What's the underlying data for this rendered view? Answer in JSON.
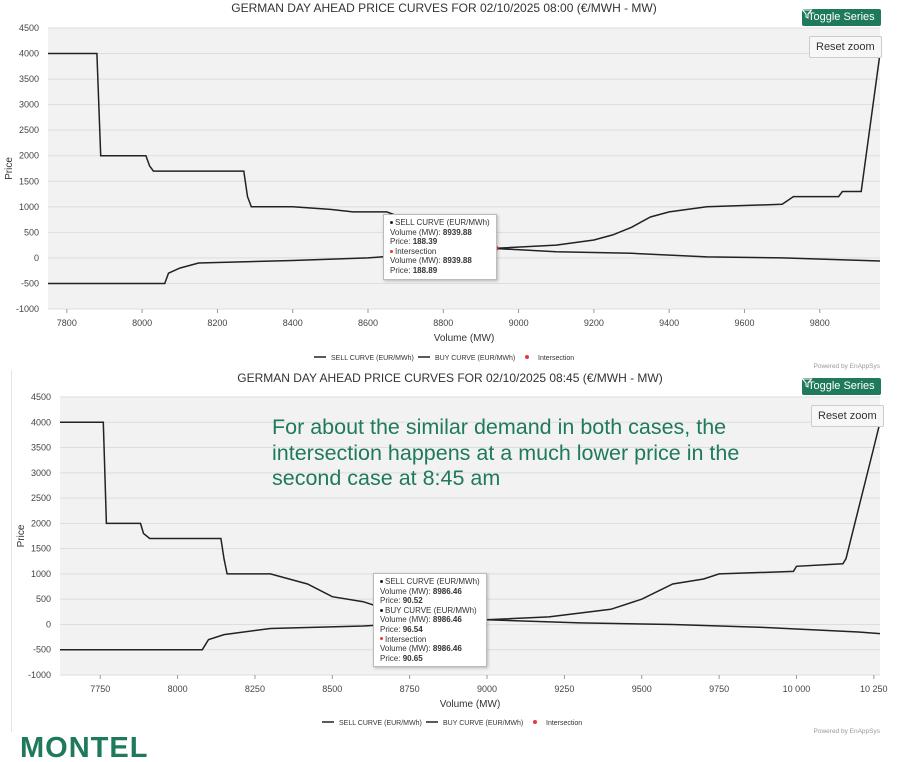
{
  "annotation": "For about the similar demand in both cases, the intersection happens at a  much lower price in the second case at 8:45 am",
  "logo_text": "MONTEL",
  "colors": {
    "brand": "#1f7a5c",
    "curve": "#222222",
    "intersection": "#e8383d",
    "plot_bg": "#f2f2f2",
    "grid": "#dddddd"
  },
  "charts": [
    {
      "toggle_label": "Toggle Series",
      "reset_label": "Reset zoom",
      "credits": "Powered by EnAppSys",
      "tooltip": [
        {
          "series": "SELL CURVE (EUR/MWh)",
          "volume_label": "Volume (MW):",
          "volume": "8939.88",
          "price_label": "Price:",
          "price": "188.39"
        },
        {
          "series": "Intersection",
          "volume_label": "Volume (MW):",
          "volume": "8939.88",
          "price_label": "Price:",
          "price": "188.89"
        }
      ]
    },
    {
      "toggle_label": "Toggle Series",
      "reset_label": "Reset zoom",
      "credits": "Powered by EnAppSys",
      "tooltip": [
        {
          "series": "SELL CURVE (EUR/MWh)",
          "volume_label": "Volume (MW):",
          "volume": "8986.46",
          "price_label": "Price:",
          "price": "90.52"
        },
        {
          "series": "BUY CURVE (EUR/MWh)",
          "volume_label": "Volume (MW):",
          "volume": "8986.46",
          "price_label": "Price:",
          "price": "96.54"
        },
        {
          "series": "Intersection",
          "volume_label": "Volume (MW):",
          "volume": "8986.46",
          "price_label": "Price:",
          "price": "90.65"
        }
      ]
    }
  ],
  "chart_data": [
    {
      "type": "line",
      "title": "GERMAN DAY AHEAD PRICE CURVES FOR 02/10/2025 08:00 (€/MWH - MW)",
      "xlabel": "Volume (MW)",
      "ylabel": "Price",
      "xlim": [
        7750,
        9960
      ],
      "ylim": [
        -1000,
        4500
      ],
      "x_ticks": [
        7800,
        8000,
        8200,
        8400,
        8600,
        8800,
        9000,
        9200,
        9400,
        9600,
        9800
      ],
      "x_tick_labels": [
        "7800",
        "8000",
        "8200",
        "8400",
        "8600",
        "8800",
        "9000",
        "9200",
        "9400",
        "9600",
        "9800"
      ],
      "y_ticks": [
        -1000,
        -500,
        0,
        500,
        1000,
        1500,
        2000,
        2500,
        3000,
        3500,
        4000,
        4500
      ],
      "y_tick_labels": [
        "-1000",
        "-500",
        "0",
        "500",
        "1000",
        "1500",
        "2000",
        "2500",
        "3000",
        "3500",
        "4000",
        "4500"
      ],
      "grid": "horizontal",
      "legend_position": "bottom",
      "series": [
        {
          "name": "BUY CURVE (EUR/MWh)",
          "x": [
            7750,
            7880,
            7890,
            8010,
            8020,
            8030,
            8270,
            8280,
            8290,
            8400,
            8500,
            8560,
            8650,
            8900,
            9100,
            9300,
            9500,
            9700,
            9960
          ],
          "y": [
            4000,
            4000,
            2000,
            2000,
            1800,
            1700,
            1700,
            1200,
            1000,
            1000,
            950,
            900,
            900,
            200,
            120,
            90,
            20,
            0,
            -60
          ]
        },
        {
          "name": "SELL CURVE (EUR/MWh)",
          "x": [
            7750,
            8060,
            8070,
            8100,
            8150,
            8250,
            8400,
            8600,
            8939.88,
            9100,
            9200,
            9250,
            9300,
            9350,
            9400,
            9500,
            9700,
            9710,
            9730,
            9850,
            9860,
            9910,
            9960
          ],
          "y": [
            -500,
            -500,
            -300,
            -200,
            -100,
            -80,
            -50,
            0,
            188.39,
            250,
            350,
            450,
            600,
            800,
            900,
            1000,
            1050,
            1100,
            1200,
            1200,
            1300,
            1300,
            4000
          ]
        },
        {
          "name": "Intersection",
          "x": [
            8939.88
          ],
          "y": [
            188.89
          ]
        }
      ]
    },
    {
      "type": "line",
      "title": "GERMAN DAY AHEAD PRICE CURVES FOR 02/10/2025 08:45 (€/MWH - MW)",
      "xlabel": "Volume (MW)",
      "ylabel": "Price",
      "xlim": [
        7620,
        10270
      ],
      "ylim": [
        -1000,
        4500
      ],
      "x_ticks": [
        7750,
        8000,
        8250,
        8500,
        8750,
        9000,
        9250,
        9500,
        9750,
        10000,
        10250
      ],
      "x_tick_labels": [
        "7750",
        "8000",
        "8250",
        "8500",
        "8750",
        "9000",
        "9250",
        "9500",
        "9750",
        "10 000",
        "10 250"
      ],
      "y_ticks": [
        -1000,
        -500,
        0,
        500,
        1000,
        1500,
        2000,
        2500,
        3000,
        3500,
        4000,
        4500
      ],
      "y_tick_labels": [
        "-1000",
        "-500",
        "0",
        "500",
        "1000",
        "1500",
        "2000",
        "2500",
        "3000",
        "3500",
        "4000",
        "4500"
      ],
      "grid": "horizontal",
      "legend_position": "bottom",
      "series": [
        {
          "name": "BUY CURVE (EUR/MWh)",
          "x": [
            7620,
            7760,
            7770,
            7880,
            7890,
            7910,
            8140,
            8150,
            8160,
            8300,
            8420,
            8500,
            8600,
            8700,
            8986.46,
            9300,
            9600,
            9900,
            10200,
            10270
          ],
          "y": [
            4000,
            4000,
            2000,
            2000,
            1800,
            1700,
            1700,
            1300,
            1000,
            1000,
            800,
            550,
            450,
            250,
            96.54,
            30,
            0,
            -60,
            -150,
            -180
          ]
        },
        {
          "name": "SELL CURVE (EUR/MWh)",
          "x": [
            7620,
            8080,
            8100,
            8150,
            8300,
            8600,
            8986.46,
            9200,
            9400,
            9500,
            9600,
            9700,
            9750,
            9990,
            10000,
            10150,
            10160,
            10250,
            10270
          ],
          "y": [
            -500,
            -500,
            -300,
            -200,
            -80,
            -30,
            90.52,
            150,
            300,
            500,
            800,
            900,
            1000,
            1050,
            1150,
            1200,
            1300,
            3500,
            4000
          ]
        },
        {
          "name": "Intersection",
          "x": [
            8986.46
          ],
          "y": [
            90.65
          ]
        }
      ]
    }
  ]
}
